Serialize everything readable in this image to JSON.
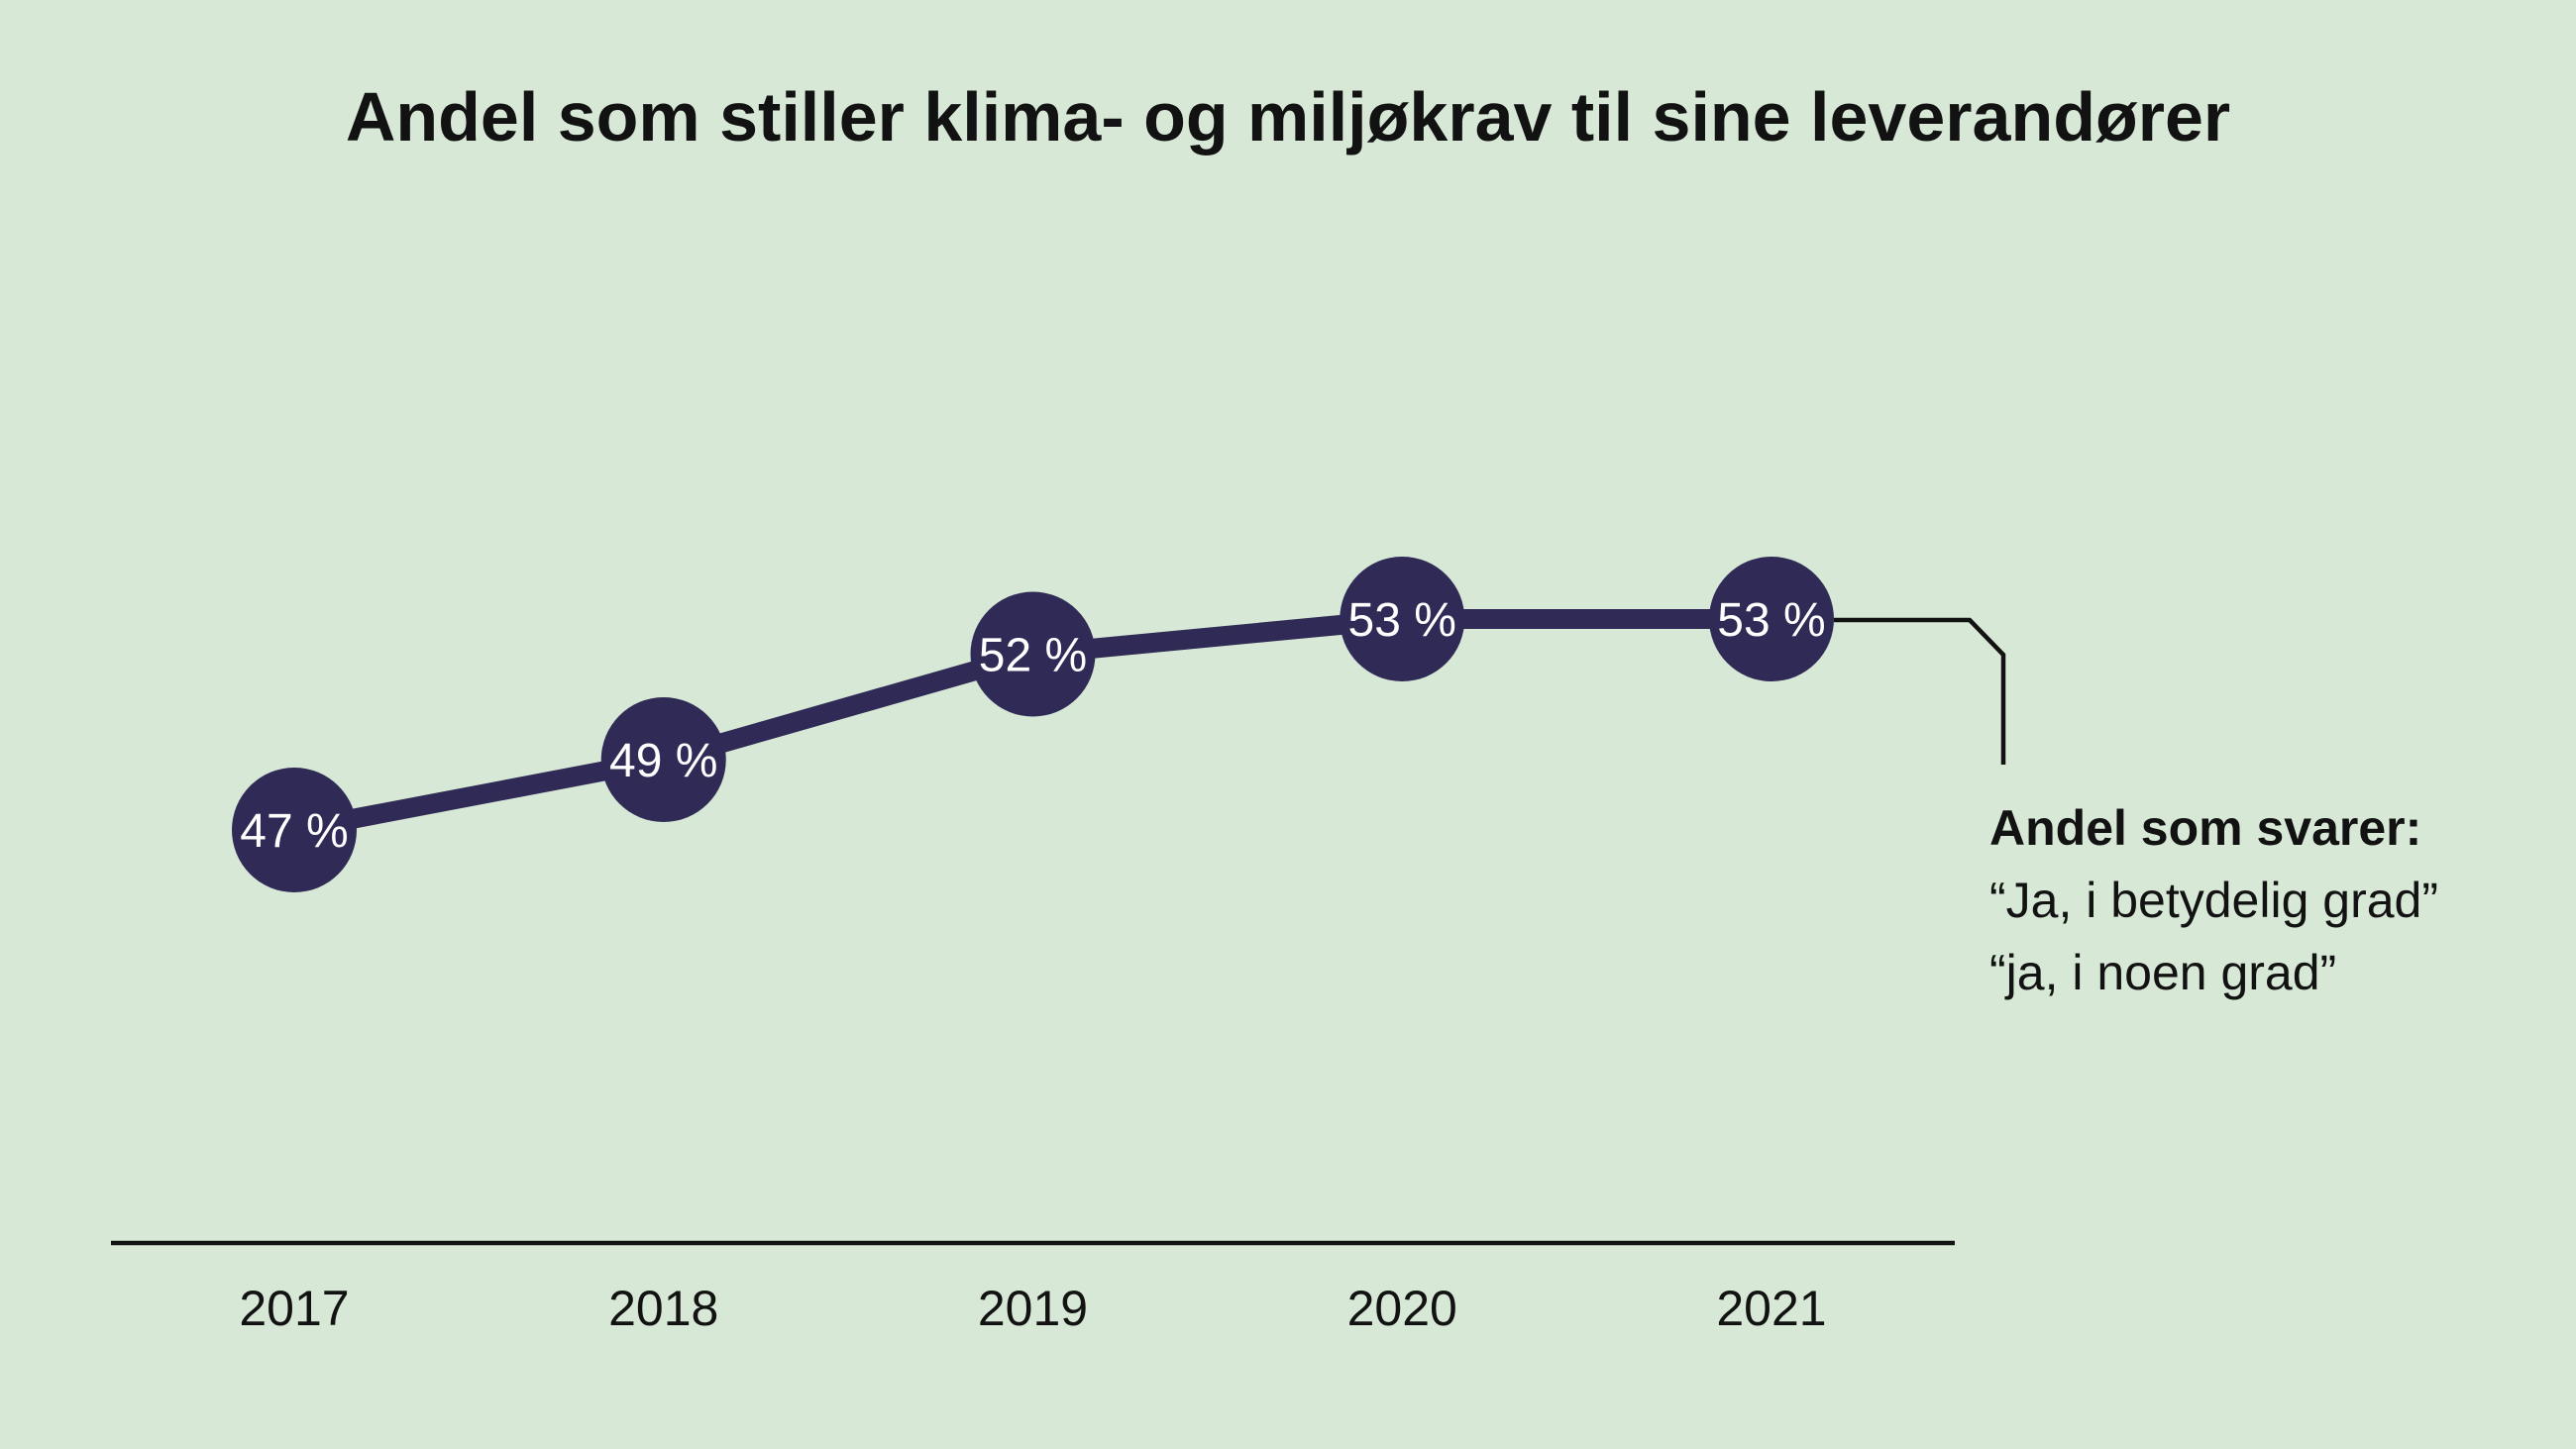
{
  "title": "Andel som stiller klima- og miljøkrav til sine leverandører",
  "colors": {
    "background": "#d7e9d6",
    "marker": "#302a56",
    "line": "#302a56",
    "axis": "#121212",
    "text": "#121212",
    "marker_label": "#ffffff",
    "connector": "#121212"
  },
  "chart_data": {
    "type": "line",
    "title": "Andel som stiller klima- og miljøkrav til sine leverandører",
    "categories": [
      "2017",
      "2018",
      "2019",
      "2020",
      "2021"
    ],
    "series": [
      {
        "name": "Andel som stiller klima- og miljøkrav",
        "values": [
          47,
          49,
          52,
          53,
          53
        ]
      }
    ],
    "point_labels": [
      "47 %",
      "49 %",
      "52 %",
      "53 %",
      "53 %"
    ],
    "xlabel": "",
    "ylabel": "",
    "unit": "%",
    "ylim": [
      44,
      56
    ],
    "grid": false,
    "legend": false,
    "markers": "large-filled-circles-with-value-labels",
    "annotation": {
      "heading": "Andel som svarer:",
      "lines": [
        "“Ja, i betydelig grad”",
        "“ja, i noen grad”"
      ],
      "attached_to": "2021"
    }
  }
}
